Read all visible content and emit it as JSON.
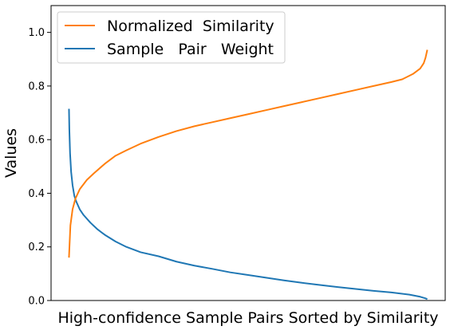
{
  "chart_data": {
    "type": "line",
    "title": "",
    "xlabel": "High-confidence Sample Pairs Sorted by Similarity",
    "ylabel": "Values",
    "ylim": [
      0.0,
      1.1
    ],
    "yticks": [
      "0.0",
      "0.2",
      "0.4",
      "0.6",
      "0.8",
      "1.0"
    ],
    "xlim": [
      -0.05,
      1.05
    ],
    "xticks": [],
    "grid": false,
    "legend_position": "upper-left",
    "series": [
      {
        "name": "Normalized  Similarity",
        "color": "#ff7f0e",
        "x": [
          0.0,
          0.004,
          0.01,
          0.018,
          0.03,
          0.05,
          0.07,
          0.1,
          0.13,
          0.16,
          0.2,
          0.25,
          0.3,
          0.35,
          0.4,
          0.45,
          0.5,
          0.55,
          0.6,
          0.65,
          0.7,
          0.75,
          0.8,
          0.85,
          0.9,
          0.93,
          0.96,
          0.98,
          0.99,
          0.995,
          1.0
        ],
        "values": [
          0.16,
          0.28,
          0.34,
          0.38,
          0.415,
          0.45,
          0.475,
          0.51,
          0.54,
          0.56,
          0.585,
          0.61,
          0.632,
          0.65,
          0.665,
          0.68,
          0.695,
          0.71,
          0.725,
          0.74,
          0.755,
          0.77,
          0.785,
          0.8,
          0.815,
          0.825,
          0.845,
          0.865,
          0.885,
          0.905,
          0.935
        ]
      },
      {
        "name": "Sample   Pair   Weight",
        "color": "#1f77b4",
        "x": [
          0.0,
          0.001,
          0.003,
          0.006,
          0.01,
          0.015,
          0.02,
          0.03,
          0.04,
          0.06,
          0.08,
          0.1,
          0.13,
          0.16,
          0.2,
          0.25,
          0.3,
          0.35,
          0.4,
          0.45,
          0.5,
          0.55,
          0.6,
          0.65,
          0.7,
          0.75,
          0.8,
          0.85,
          0.9,
          0.95,
          0.98,
          0.995,
          1.0
        ],
        "values": [
          0.715,
          0.64,
          0.55,
          0.48,
          0.43,
          0.39,
          0.37,
          0.34,
          0.32,
          0.29,
          0.265,
          0.245,
          0.22,
          0.2,
          0.18,
          0.165,
          0.145,
          0.13,
          0.118,
          0.105,
          0.095,
          0.085,
          0.075,
          0.066,
          0.058,
          0.05,
          0.043,
          0.036,
          0.03,
          0.022,
          0.014,
          0.008,
          0.005
        ]
      }
    ]
  }
}
